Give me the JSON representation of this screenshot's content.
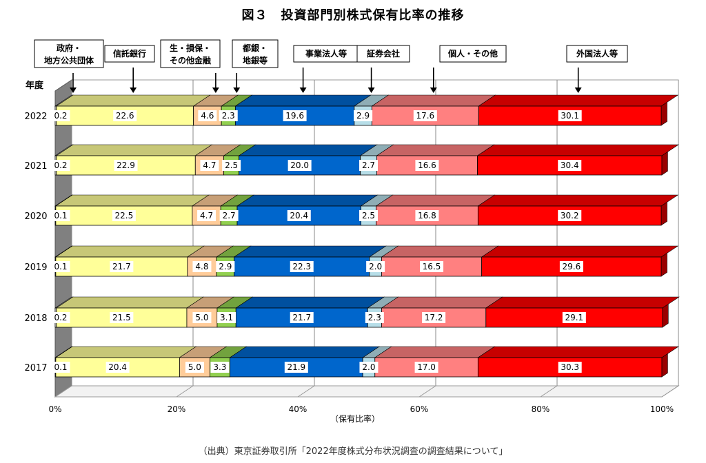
{
  "title": "図３　投資部門別株式保有比率の推移",
  "source_note": "（出典）東京証券取引所「2022年度株式分布状況調査の調査結果について」",
  "chart_data": {
    "type": "bar",
    "orientation": "horizontal",
    "stacked": true,
    "percent": true,
    "three_d": true,
    "title": "図３　投資部門別株式保有比率の推移",
    "ylabel": "年度",
    "xlabel": "（保有比率）",
    "xlim": [
      0,
      100
    ],
    "x_ticks": [
      "0%",
      "20%",
      "40%",
      "60%",
      "80%",
      "100%"
    ],
    "grid": true,
    "legend_placement": "top (callout labels with arrows)",
    "categories": [
      "2022",
      "2021",
      "2020",
      "2019",
      "2018",
      "2017"
    ],
    "series": [
      {
        "name": "政府・地方公共団体",
        "label_lines": [
          "政府・",
          "地方公共団体"
        ],
        "color": "#f5f5f5",
        "values": [
          0.2,
          0.2,
          0.1,
          0.1,
          0.2,
          0.1
        ]
      },
      {
        "name": "信託銀行",
        "label_lines": [
          "信託銀行"
        ],
        "color": "#ffff99",
        "values": [
          22.6,
          22.9,
          22.5,
          21.7,
          21.5,
          20.4
        ]
      },
      {
        "name": "生・損保・その他金融",
        "label_lines": [
          "生・損保・",
          "その他金融"
        ],
        "color": "#ffcc99",
        "values": [
          4.6,
          4.7,
          4.7,
          4.8,
          5.0,
          5.0
        ]
      },
      {
        "name": "都銀・地銀等",
        "label_lines": [
          "都銀・",
          "地銀等"
        ],
        "color": "#92d050",
        "values": [
          2.3,
          2.5,
          2.7,
          2.9,
          3.1,
          3.3
        ]
      },
      {
        "name": "事業法人等",
        "label_lines": [
          "事業法人等"
        ],
        "color": "#0066cc",
        "values": [
          19.6,
          20.0,
          20.4,
          22.3,
          21.7,
          21.9
        ]
      },
      {
        "name": "証券会社",
        "label_lines": [
          "証券会社"
        ],
        "color": "#b7dee8",
        "values": [
          2.9,
          2.7,
          2.5,
          2.0,
          2.3,
          2.0
        ]
      },
      {
        "name": "個人・その他",
        "label_lines": [
          "個人・その他"
        ],
        "color": "#ff8080",
        "values": [
          17.6,
          16.6,
          16.8,
          16.5,
          17.2,
          17.0
        ]
      },
      {
        "name": "外国法人等",
        "label_lines": [
          "外国法人等"
        ],
        "color": "#ff0000",
        "values": [
          30.1,
          30.4,
          30.2,
          29.6,
          29.1,
          30.3
        ]
      }
    ]
  }
}
